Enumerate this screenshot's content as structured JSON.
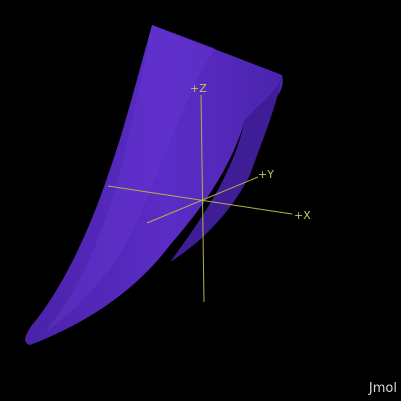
{
  "viewer": {
    "app_name": "Jmol",
    "background_color": "#000000",
    "surface_color": "#5b2bc4",
    "axis_color": "#b7b04a"
  },
  "axes": {
    "z_label": "+Z",
    "y_label": "+Y",
    "x_label": "+X"
  }
}
